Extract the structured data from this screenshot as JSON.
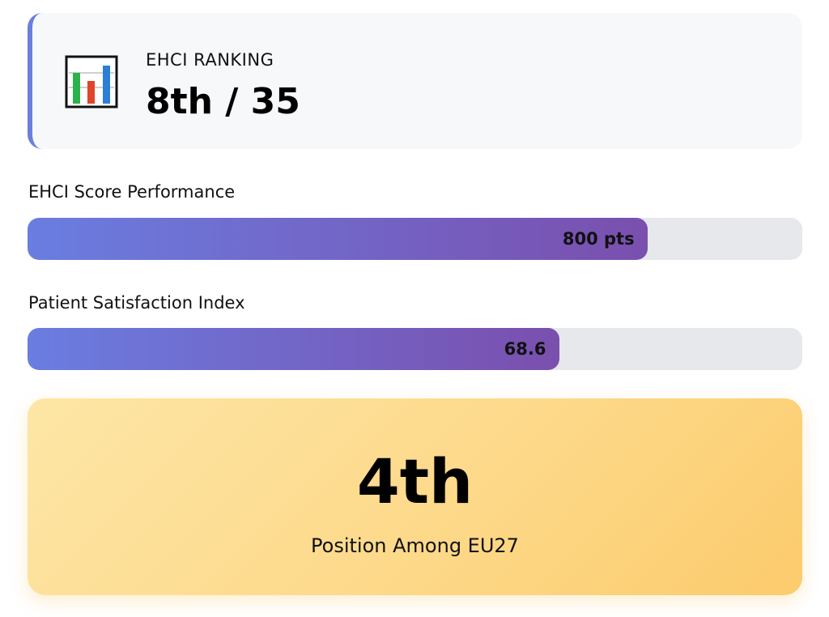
{
  "ranking": {
    "icon": "bar-chart-icon",
    "label": "EHCI RANKING",
    "value": "8th / 35"
  },
  "metrics": [
    {
      "label": "EHCI Score Performance",
      "value_text": "800 pts",
      "fill_fraction": 0.8
    },
    {
      "label": "Patient Satisfaction Index",
      "value_text": "68.6",
      "fill_fraction": 0.686
    }
  ],
  "position": {
    "value": "4th",
    "caption": "Position Among EU27"
  },
  "colors": {
    "accent": "#6b7fdc",
    "bar_gradient_start": "#6a7de0",
    "bar_gradient_end": "#7a4fae",
    "track": "#e6e8ec",
    "highlight_card": "#fdd98a"
  }
}
